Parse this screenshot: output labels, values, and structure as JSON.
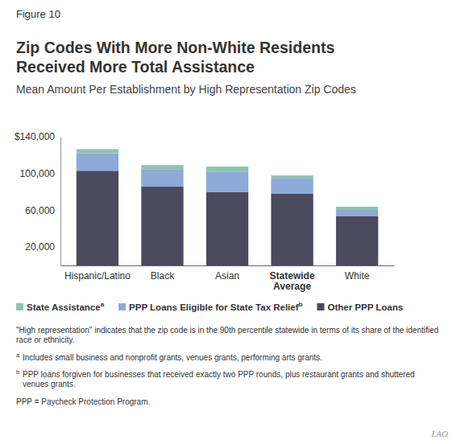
{
  "chart_data": {
    "type": "bar",
    "figure_label": "Figure 10",
    "title": "Zip Codes With More Non-White Residents Received More Total Assistance",
    "subtitle": "Mean Amount Per Establishment by High Representation Zip Codes",
    "categories": [
      "Hispanic/Latino",
      "Black",
      "Asian",
      "Statewide Average",
      "White"
    ],
    "series": [
      {
        "name": "State Assistance",
        "note": "a",
        "color": "#8fc3b4",
        "values": [
          4500,
          5000,
          6000,
          3500,
          3500
        ]
      },
      {
        "name": "PPP Loans Eligible for State Tax Relief",
        "note": "b",
        "color": "#8eaad8",
        "values": [
          19000,
          18500,
          22000,
          16500,
          7000
        ]
      },
      {
        "name": "Other PPP Loans",
        "color": "#4b4a5e",
        "values": [
          103000,
          85700,
          79600,
          77900,
          53400
        ]
      }
    ],
    "stacked": true,
    "grid": false,
    "legend": "bottom",
    "ylim": [
      0,
      140000
    ],
    "yticks": [
      {
        "value": 20000,
        "label": "20,000"
      },
      {
        "value": 60000,
        "label": "60,000"
      },
      {
        "value": 100000,
        "label": "100,000"
      },
      {
        "value": 140000,
        "label": "$140,000"
      }
    ],
    "notes": [
      {
        "text": "\"High representation\" indicates that the zip code is in the 90th percentile statewide in terms of its share of the identified race or ethnicity."
      },
      {
        "marker": "a",
        "text": "Includes small business and nonprofit grants, venues grants, performing arts grants."
      },
      {
        "marker": "b",
        "text": "PPP loans forgiven for businesses that received exactly two PPP rounds, plus restaurant grants and shuttered venues grants."
      },
      {
        "text": "PPP = Paycheck Protection Program."
      }
    ],
    "source": "LAO"
  }
}
